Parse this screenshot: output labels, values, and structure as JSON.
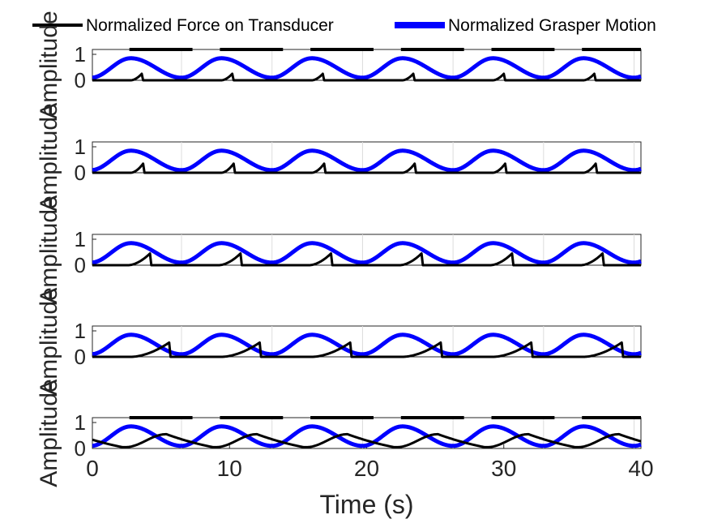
{
  "legend": [
    {
      "label": "Normalized Force on Transducer",
      "color": "#000000",
      "style": "line-thin"
    },
    {
      "label": "Normalized Grasper Motion",
      "color": "#0000ff",
      "style": "line-thick"
    }
  ],
  "chart_data": [
    {
      "type": "line",
      "panel": 1,
      "ylabel": "Amplitude",
      "xlim": [
        0,
        40
      ],
      "ylim": [
        0,
        1
      ],
      "yticks": [
        0,
        1
      ],
      "grid": false,
      "motion": {
        "period_s": 6.6,
        "min": 0.1,
        "max": 0.85,
        "peak_s": 2.8,
        "trough_s": 6.5
      },
      "force": {
        "peak": 0.25,
        "rise_start_s": 2.8,
        "peak_s": 3.6,
        "drop_s": 3.7
      }
    },
    {
      "type": "line",
      "panel": 2,
      "ylabel": "Amplitude",
      "xlim": [
        0,
        40
      ],
      "ylim": [
        0,
        1
      ],
      "yticks": [
        0,
        1
      ],
      "grid": false,
      "motion": {
        "period_s": 6.6,
        "min": 0.1,
        "max": 0.85,
        "peak_s": 2.8,
        "trough_s": 6.5
      },
      "force": {
        "peak": 0.35,
        "rise_start_s": 2.8,
        "peak_s": 3.7,
        "drop_s": 3.8
      }
    },
    {
      "type": "line",
      "panel": 3,
      "ylabel": "Amplitude",
      "xlim": [
        0,
        40
      ],
      "ylim": [
        0,
        1
      ],
      "yticks": [
        0,
        1
      ],
      "grid": false,
      "motion": {
        "period_s": 6.6,
        "min": 0.1,
        "max": 0.85,
        "peak_s": 2.8,
        "trough_s": 6.5
      },
      "force": {
        "peak": 0.45,
        "rise_start_s": 2.6,
        "peak_s": 4.2,
        "drop_s": 4.3
      }
    },
    {
      "type": "line",
      "panel": 4,
      "ylabel": "Amplitude",
      "xlim": [
        0,
        40
      ],
      "ylim": [
        0,
        1
      ],
      "yticks": [
        0,
        1
      ],
      "grid": false,
      "motion": {
        "period_s": 6.6,
        "min": 0.1,
        "max": 0.85,
        "peak_s": 2.8,
        "trough_s": 6.5
      },
      "force": {
        "peak": 0.55,
        "rise_start_s": 2.8,
        "peak_s": 5.6,
        "drop_s": 5.7
      }
    },
    {
      "type": "line",
      "panel": 5,
      "ylabel": "Amplitude",
      "xlabel": "Time (s)",
      "xlim": [
        0,
        40
      ],
      "ylim": [
        0,
        1
      ],
      "yticks": [
        0,
        1
      ],
      "xticks": [
        0,
        10,
        20,
        30,
        40
      ],
      "grid": false,
      "motion": {
        "period_s": 6.6,
        "min": 0.1,
        "max": 0.85,
        "peak_s": 2.8,
        "trough_s": 6.5
      },
      "force": {
        "peak": 0.55,
        "rise_start_s": 2.4,
        "peak_s": 5.4,
        "fall_end_s": 8.8,
        "floor": 0.05
      }
    }
  ]
}
